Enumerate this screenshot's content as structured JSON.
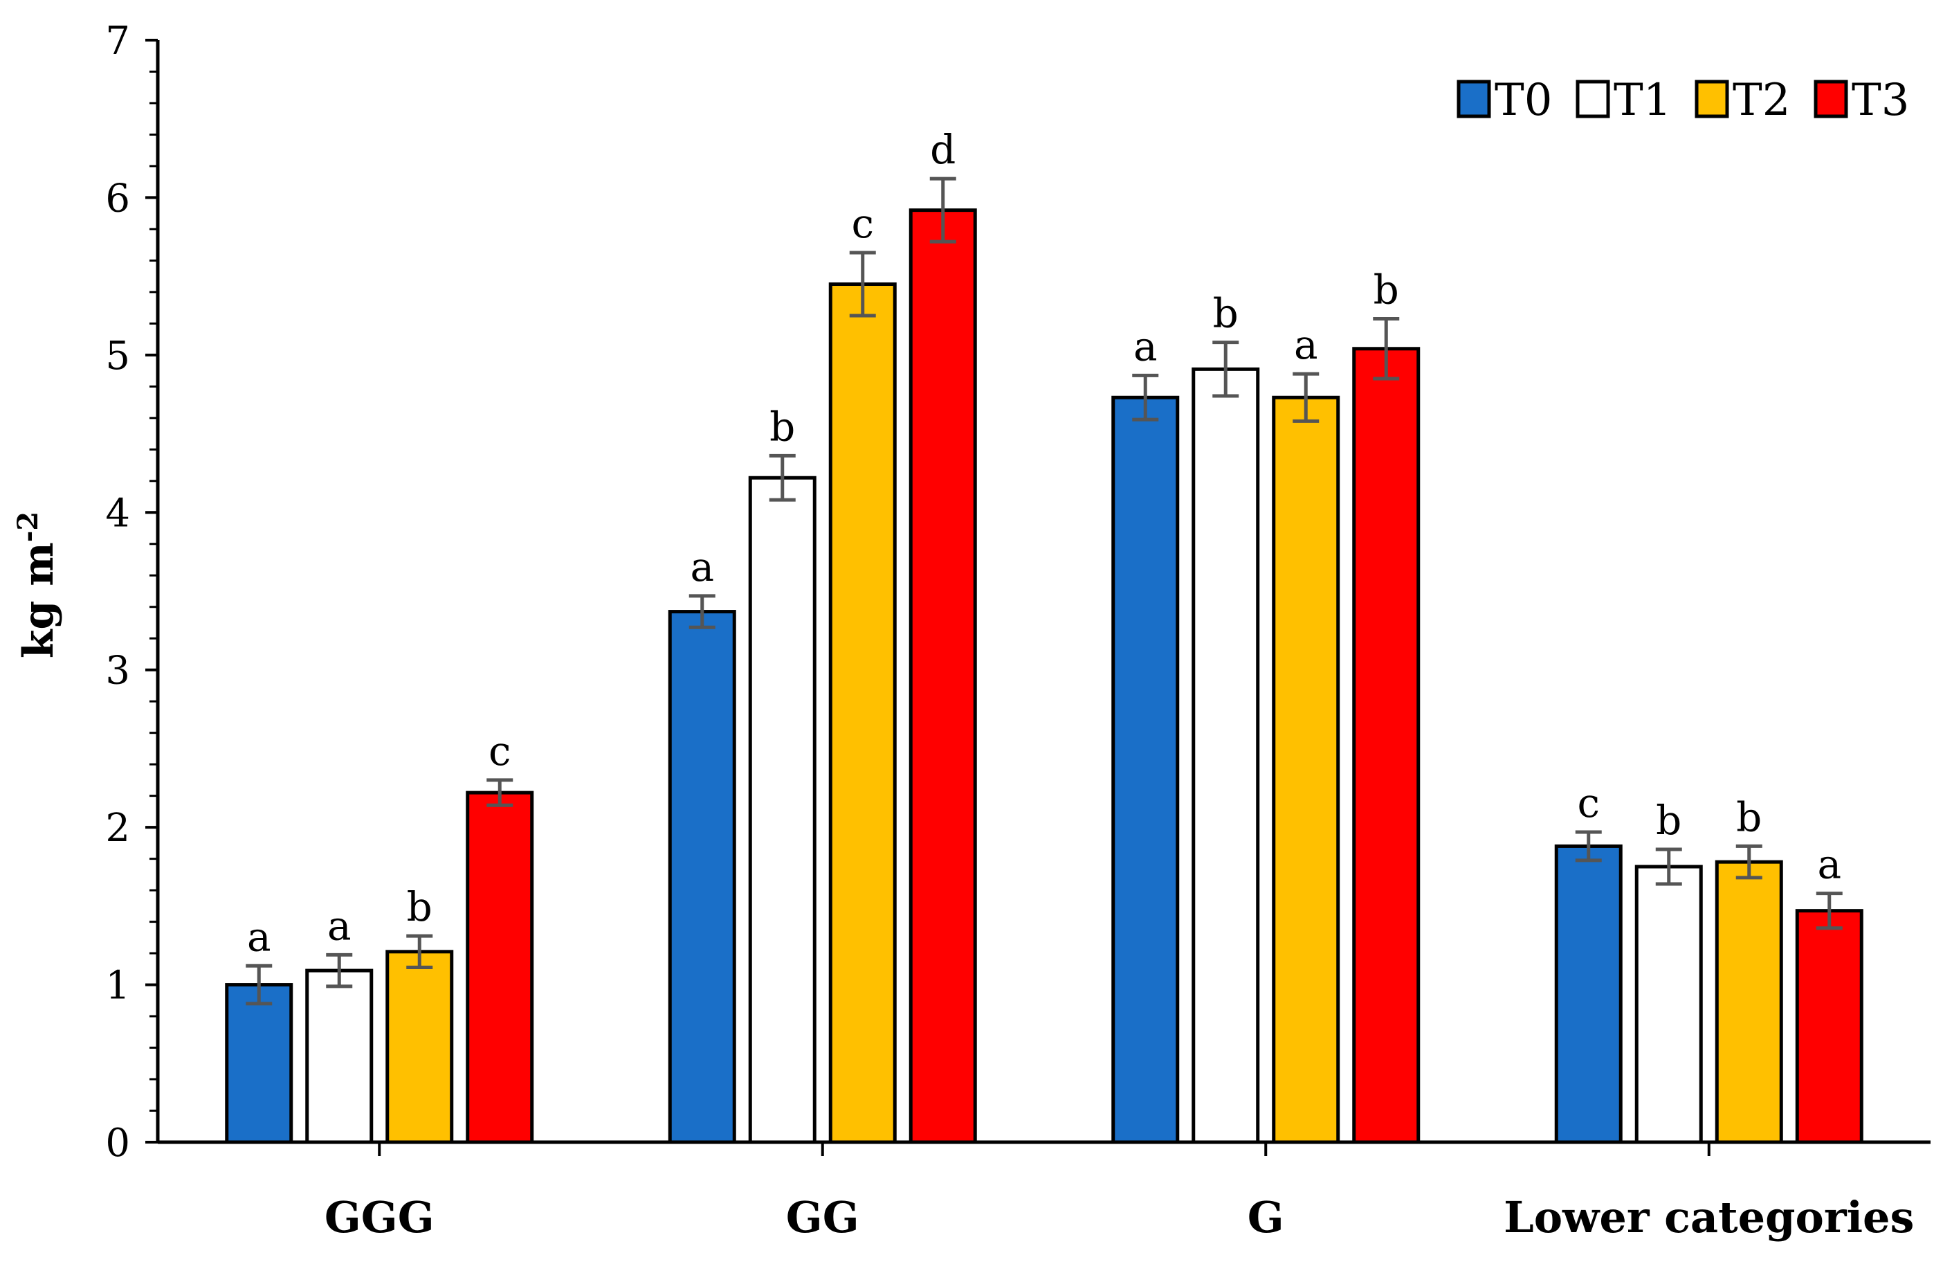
{
  "chart_data": {
    "type": "bar",
    "title": "",
    "xlabel": "",
    "ylabel": "kg m",
    "ylabel_superscript": "-2",
    "ylim": [
      0,
      7
    ],
    "yticks": [
      "0",
      "1",
      "2",
      "3",
      "4",
      "5",
      "6",
      "7"
    ],
    "grid": false,
    "legend_position": "top-right",
    "categories": [
      "GGG",
      "GG",
      "G",
      "Lower categories"
    ],
    "series": [
      {
        "name": "T0",
        "color": "#1a6fc8",
        "values": [
          1.0,
          3.37,
          4.73,
          1.88
        ],
        "errors": [
          0.12,
          0.1,
          0.14,
          0.09
        ],
        "labels": [
          "a",
          "a",
          "a",
          "c"
        ]
      },
      {
        "name": "T1",
        "color": "#ffffff",
        "values": [
          1.09,
          4.22,
          4.91,
          1.75
        ],
        "errors": [
          0.1,
          0.14,
          0.17,
          0.11
        ],
        "labels": [
          "a",
          "b",
          "b",
          "b"
        ]
      },
      {
        "name": "T2",
        "color": "#ffc000",
        "values": [
          1.21,
          5.45,
          4.73,
          1.78
        ],
        "errors": [
          0.1,
          0.2,
          0.15,
          0.1
        ],
        "labels": [
          "b",
          "c",
          "a",
          "b"
        ]
      },
      {
        "name": "T3",
        "color": "#ff0000",
        "values": [
          2.22,
          5.92,
          5.04,
          1.47
        ],
        "errors": [
          0.08,
          0.2,
          0.19,
          0.11
        ],
        "labels": [
          "c",
          "d",
          "b",
          "a"
        ]
      }
    ]
  }
}
